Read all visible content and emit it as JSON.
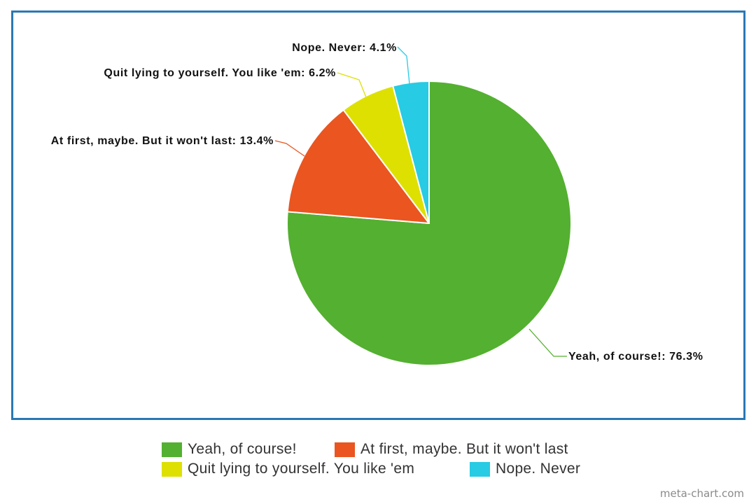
{
  "chart_data": {
    "type": "pie",
    "start_angle": "top, clockwise",
    "slices": [
      {
        "label": "Yeah, of course!",
        "value": 76.3,
        "data_label": "Yeah, of course!: 76.3%",
        "color": "#54b030"
      },
      {
        "label": "At first, maybe. But it won't last",
        "value": 13.4,
        "data_label": "At first, maybe. But it won't last: 13.4%",
        "color": "#ea5520"
      },
      {
        "label": "Quit lying to yourself. You like 'em",
        "value": 6.2,
        "data_label": "Quit lying to yourself. You like 'em: 6.2%",
        "color": "#dde000"
      },
      {
        "label": "Nope. Never",
        "value": 4.1,
        "data_label": "Nope. Never: 4.1%",
        "color": "#27cbe3"
      }
    ],
    "legend_placement": "bottom-center"
  },
  "frame_color": "#2a78b4",
  "credit": "meta-chart.com"
}
